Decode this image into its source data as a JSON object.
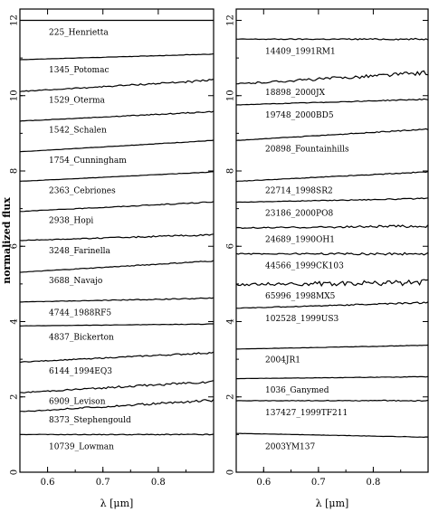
{
  "chart_data": [
    {
      "type": "line",
      "xlabel": "λ [μm]",
      "ylabel": "normalized flux",
      "xlim": [
        0.55,
        0.9
      ],
      "ylim": [
        0,
        12.3
      ],
      "xticks": [
        0.6,
        0.7,
        0.8
      ],
      "yticks": [
        0,
        2,
        4,
        6,
        8,
        10,
        12
      ],
      "series": [
        {
          "name": "225_Henrietta",
          "offset": 12.0,
          "slope": 0.0,
          "noise": 0.0
        },
        {
          "name": "1345_Potomac",
          "offset": 11.0,
          "slope": 0.3,
          "noise": 0.01
        },
        {
          "name": "1529_Oterma",
          "offset": 10.2,
          "slope": 0.6,
          "noise": 0.04
        },
        {
          "name": "1542_Schalen",
          "offset": 9.4,
          "slope": 0.5,
          "noise": 0.02
        },
        {
          "name": "1754_Cunningham",
          "offset": 8.6,
          "slope": 0.6,
          "noise": 0.01
        },
        {
          "name": "2363_Cebriones",
          "offset": 7.8,
          "slope": 0.5,
          "noise": 0.01
        },
        {
          "name": "2938_Hopi",
          "offset": 7.0,
          "slope": 0.5,
          "noise": 0.02
        },
        {
          "name": "3248_Farinella",
          "offset": 6.2,
          "slope": 0.3,
          "noise": 0.03
        },
        {
          "name": "3688_Navajo",
          "offset": 5.4,
          "slope": 0.6,
          "noise": 0.02
        },
        {
          "name": "4744_1988RF5",
          "offset": 4.55,
          "slope": 0.2,
          "noise": 0.02
        },
        {
          "name": "4837_Bickerton",
          "offset": 3.9,
          "slope": 0.1,
          "noise": 0.01
        },
        {
          "name": "6144_1994EQ3",
          "offset": 3.0,
          "slope": 0.5,
          "noise": 0.03
        },
        {
          "name": "6909_Levison",
          "offset": 2.2,
          "slope": 0.6,
          "noise": 0.05
        },
        {
          "name": "8373_Stephengould",
          "offset": 1.7,
          "slope": 0.6,
          "noise": 0.05
        },
        {
          "name": "10739_Lowman",
          "offset": 1.0,
          "slope": 0.0,
          "noise": 0.02
        }
      ]
    },
    {
      "type": "line",
      "xlabel": "λ [μm]",
      "ylabel": "",
      "xlim": [
        0.55,
        0.9
      ],
      "ylim": [
        0,
        12.3
      ],
      "xticks": [
        0.6,
        0.7,
        0.8
      ],
      "yticks": [
        0,
        2,
        4,
        6,
        8,
        10,
        12
      ],
      "series": [
        {
          "name": "14409_1991RM1",
          "offset": 11.5,
          "slope": 0.0,
          "noise": 0.03
        },
        {
          "name": "18898_2000JX",
          "offset": 10.4,
          "slope": 0.6,
          "noise": 0.08
        },
        {
          "name": "19748_2000BD5",
          "offset": 9.8,
          "slope": 0.3,
          "noise": 0.02
        },
        {
          "name": "20898_Fountainhills",
          "offset": 8.9,
          "slope": 0.6,
          "noise": 0.02
        },
        {
          "name": "22714_1998SR2",
          "offset": 7.8,
          "slope": 0.5,
          "noise": 0.02
        },
        {
          "name": "23186_2000PO8",
          "offset": 7.2,
          "slope": 0.2,
          "noise": 0.02
        },
        {
          "name": "24689_1990OH1",
          "offset": 6.5,
          "slope": 0.1,
          "noise": 0.05
        },
        {
          "name": "44566_1999CK103",
          "offset": 5.8,
          "slope": 0.0,
          "noise": 0.05
        },
        {
          "name": "65996_1998MX5",
          "offset": 5.0,
          "slope": 0.1,
          "noise": 0.12
        },
        {
          "name": "102528_1999US3",
          "offset": 4.4,
          "slope": 0.3,
          "noise": 0.03
        },
        {
          "name": "2004JR1",
          "offset": 3.3,
          "slope": 0.2,
          "noise": 0.01
        },
        {
          "name": "1036_Ganymed",
          "offset": 2.5,
          "slope": 0.1,
          "noise": 0.01
        },
        {
          "name": "137427_1999TF211",
          "offset": 1.9,
          "slope": 0.0,
          "noise": 0.02
        },
        {
          "name": "2003YM137",
          "offset": 1.0,
          "slope": -0.2,
          "noise": 0.01
        }
      ]
    }
  ]
}
